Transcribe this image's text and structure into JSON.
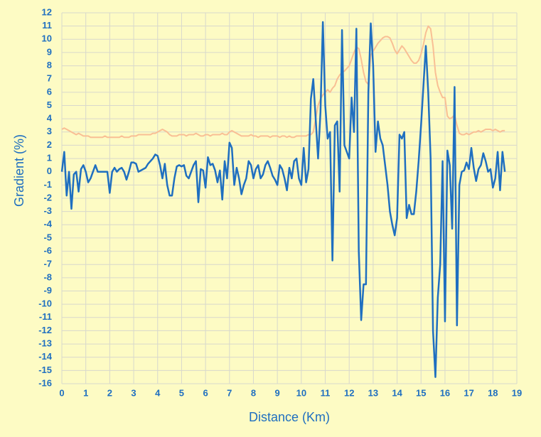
{
  "chart_data": {
    "type": "line",
    "x_label": "Distance (Km)",
    "y_label": "Gradient (%)",
    "xlim": [
      0,
      19
    ],
    "ylim": [
      -16,
      12
    ],
    "xticks": [
      0,
      1,
      2,
      3,
      4,
      5,
      6,
      7,
      8,
      9,
      10,
      11,
      12,
      13,
      14,
      15,
      16,
      17,
      18,
      19
    ],
    "yticks": [
      -16,
      -15,
      -14,
      -13,
      -12,
      -11,
      -10,
      -9,
      -8,
      -7,
      -6,
      -5,
      -4,
      -3,
      -2,
      -1,
      0,
      1,
      2,
      3,
      4,
      5,
      6,
      7,
      8,
      9,
      10,
      11,
      12
    ],
    "grid": true,
    "x": [
      0,
      0.1,
      0.2,
      0.3,
      0.4,
      0.5,
      0.6,
      0.7,
      0.8,
      0.9,
      1,
      1.1,
      1.2,
      1.3,
      1.4,
      1.5,
      1.6,
      1.7,
      1.8,
      1.9,
      2,
      2.1,
      2.2,
      2.3,
      2.4,
      2.5,
      2.6,
      2.7,
      2.8,
      2.9,
      3,
      3.1,
      3.2,
      3.3,
      3.4,
      3.5,
      3.6,
      3.7,
      3.8,
      3.9,
      4,
      4.1,
      4.2,
      4.3,
      4.4,
      4.5,
      4.6,
      4.7,
      4.8,
      4.9,
      5,
      5.1,
      5.2,
      5.3,
      5.4,
      5.5,
      5.6,
      5.7,
      5.8,
      5.9,
      6,
      6.1,
      6.2,
      6.3,
      6.4,
      6.5,
      6.6,
      6.7,
      6.8,
      6.9,
      7,
      7.1,
      7.2,
      7.3,
      7.4,
      7.5,
      7.6,
      7.7,
      7.8,
      7.9,
      8,
      8.1,
      8.2,
      8.3,
      8.4,
      8.5,
      8.6,
      8.7,
      8.8,
      8.9,
      9,
      9.1,
      9.2,
      9.3,
      9.4,
      9.5,
      9.6,
      9.7,
      9.8,
      9.9,
      10,
      10.1,
      10.2,
      10.3,
      10.4,
      10.5,
      10.6,
      10.7,
      10.8,
      10.9,
      11,
      11.1,
      11.2,
      11.3,
      11.4,
      11.5,
      11.6,
      11.7,
      11.8,
      11.9,
      12,
      12.1,
      12.2,
      12.3,
      12.4,
      12.5,
      12.6,
      12.7,
      12.8,
      12.9,
      13,
      13.1,
      13.2,
      13.3,
      13.4,
      13.5,
      13.6,
      13.7,
      13.8,
      13.9,
      14,
      14.1,
      14.2,
      14.3,
      14.4,
      14.5,
      14.6,
      14.7,
      14.8,
      14.9,
      15,
      15.1,
      15.2,
      15.3,
      15.4,
      15.5,
      15.6,
      15.7,
      15.8,
      15.9,
      16,
      16.1,
      16.2,
      16.3,
      16.4,
      16.5,
      16.6,
      16.7,
      16.8,
      16.9,
      17,
      17.1,
      17.2,
      17.3,
      17.4,
      17.5,
      17.6,
      17.7,
      17.8,
      17.9,
      18,
      18.1,
      18.2,
      18.3,
      18.4,
      18.5
    ],
    "series": [
      {
        "color": "#f9bf94",
        "values": [
          3.2,
          3.3,
          3.2,
          3.1,
          3.0,
          2.9,
          2.8,
          2.9,
          2.8,
          2.7,
          2.7,
          2.7,
          2.6,
          2.6,
          2.6,
          2.6,
          2.6,
          2.6,
          2.7,
          2.6,
          2.6,
          2.6,
          2.6,
          2.6,
          2.6,
          2.7,
          2.6,
          2.6,
          2.6,
          2.7,
          2.7,
          2.7,
          2.8,
          2.8,
          2.8,
          2.8,
          2.8,
          2.8,
          2.9,
          2.9,
          3.0,
          3.1,
          3.2,
          3.1,
          3.0,
          2.8,
          2.7,
          2.7,
          2.7,
          2.8,
          2.8,
          2.8,
          2.7,
          2.8,
          2.8,
          2.8,
          2.9,
          2.8,
          2.7,
          2.7,
          2.8,
          2.8,
          2.7,
          2.8,
          2.8,
          2.8,
          2.8,
          2.9,
          2.8,
          2.8,
          3.0,
          3.1,
          3.0,
          2.9,
          2.8,
          2.7,
          2.7,
          2.7,
          2.7,
          2.8,
          2.7,
          2.7,
          2.6,
          2.7,
          2.7,
          2.7,
          2.7,
          2.6,
          2.7,
          2.7,
          2.7,
          2.6,
          2.7,
          2.7,
          2.6,
          2.7,
          2.6,
          2.6,
          2.7,
          2.7,
          2.7,
          2.7,
          2.7,
          2.8,
          2.8,
          3.0,
          4.0,
          5.0,
          5.5,
          5.8,
          6.0,
          6.2,
          6.0,
          6.3,
          6.5,
          7.0,
          7.3,
          7.5,
          7.6,
          7.8,
          8.0,
          8.5,
          9.0,
          9.4,
          9.3,
          8.5,
          7.5,
          6.8,
          6.6,
          8.8,
          9.1,
          9.4,
          9.7,
          9.9,
          10.1,
          10.2,
          10.2,
          10.1,
          9.7,
          9.2,
          8.9,
          9.2,
          9.5,
          9.3,
          9.0,
          8.7,
          8.4,
          8.2,
          8.2,
          8.4,
          8.9,
          9.6,
          10.5,
          11.0,
          10.8,
          9.5,
          7.5,
          6.5,
          6.0,
          5.6,
          5.6,
          4.2,
          4.0,
          4.1,
          4.3,
          3.5,
          2.9,
          2.8,
          2.8,
          2.9,
          2.8,
          2.9,
          3.0,
          3.0,
          3.1,
          3.0,
          3.1,
          3.2,
          3.2,
          3.2,
          3.1,
          3.2,
          3.1,
          3.0,
          3.1,
          3.1
        ]
      },
      {
        "color": "#1f6fc0",
        "values": [
          0,
          1.5,
          -1.8,
          0,
          -2.8,
          -0.2,
          0,
          -1.5,
          0.2,
          0.5,
          0,
          -0.8,
          -0.5,
          0,
          0.5,
          0,
          0,
          0,
          0,
          0,
          -1.6,
          0,
          0.3,
          0,
          0.2,
          0.3,
          0,
          -0.6,
          0,
          0.7,
          0.7,
          0.6,
          0,
          0.1,
          0.2,
          0.3,
          0.6,
          0.8,
          1.0,
          1.3,
          1.2,
          0.5,
          -0.5,
          0.6,
          -1.0,
          -1.8,
          -1.8,
          -0.5,
          0.4,
          0.5,
          0.4,
          0.5,
          -0.3,
          -0.5,
          0,
          0.5,
          0.8,
          -2.3,
          0.2,
          0.1,
          -1.2,
          1.1,
          0.5,
          0.6,
          0.1,
          -0.8,
          0.1,
          -2.1,
          0.8,
          -0.5,
          2.2,
          1.8,
          -1.0,
          0.3,
          -0.5,
          -1.7,
          -1.0,
          -0.5,
          0.8,
          0.5,
          -0.5,
          0.2,
          0.5,
          -0.5,
          -0.2,
          0.5,
          0.8,
          0.3,
          -0.3,
          -0.6,
          -1.0,
          0.5,
          0.2,
          -0.5,
          -1.4,
          0.3,
          -0.5,
          0.8,
          1.0,
          -0.5,
          -1.0,
          1.8,
          -0.8,
          0.2,
          5.5,
          7.0,
          4.0,
          1.0,
          4.5,
          11.3,
          5.0,
          2.5,
          3.0,
          -6.7,
          3.5,
          3.8,
          -1.5,
          10.7,
          2.0,
          1.5,
          1.0,
          5.6,
          3.0,
          10.8,
          -6.0,
          -11.2,
          -8.5,
          -8.5,
          6.0,
          11.2,
          8.0,
          1.5,
          3.8,
          2.5,
          2.0,
          0.5,
          -1.0,
          -3.0,
          -4.0,
          -4.8,
          -3.5,
          2.8,
          2.5,
          3.0,
          -3.5,
          -2.5,
          -3.2,
          -3.2,
          -1.5,
          0.8,
          3.5,
          6.5,
          9.5,
          6.0,
          1.0,
          -12.0,
          -15.5,
          -9.5,
          -7.0,
          0.8,
          -11.3,
          1.6,
          0.5,
          -4.3,
          6.4,
          -11.6,
          -1.0,
          0,
          0.1,
          0.7,
          0.2,
          1.8,
          0.3,
          -0.7,
          0.2,
          0.5,
          1.4,
          0.8,
          0,
          0.2,
          -1.2,
          -0.5,
          1.5,
          -1.4,
          1.5,
          0
        ]
      }
    ]
  }
}
